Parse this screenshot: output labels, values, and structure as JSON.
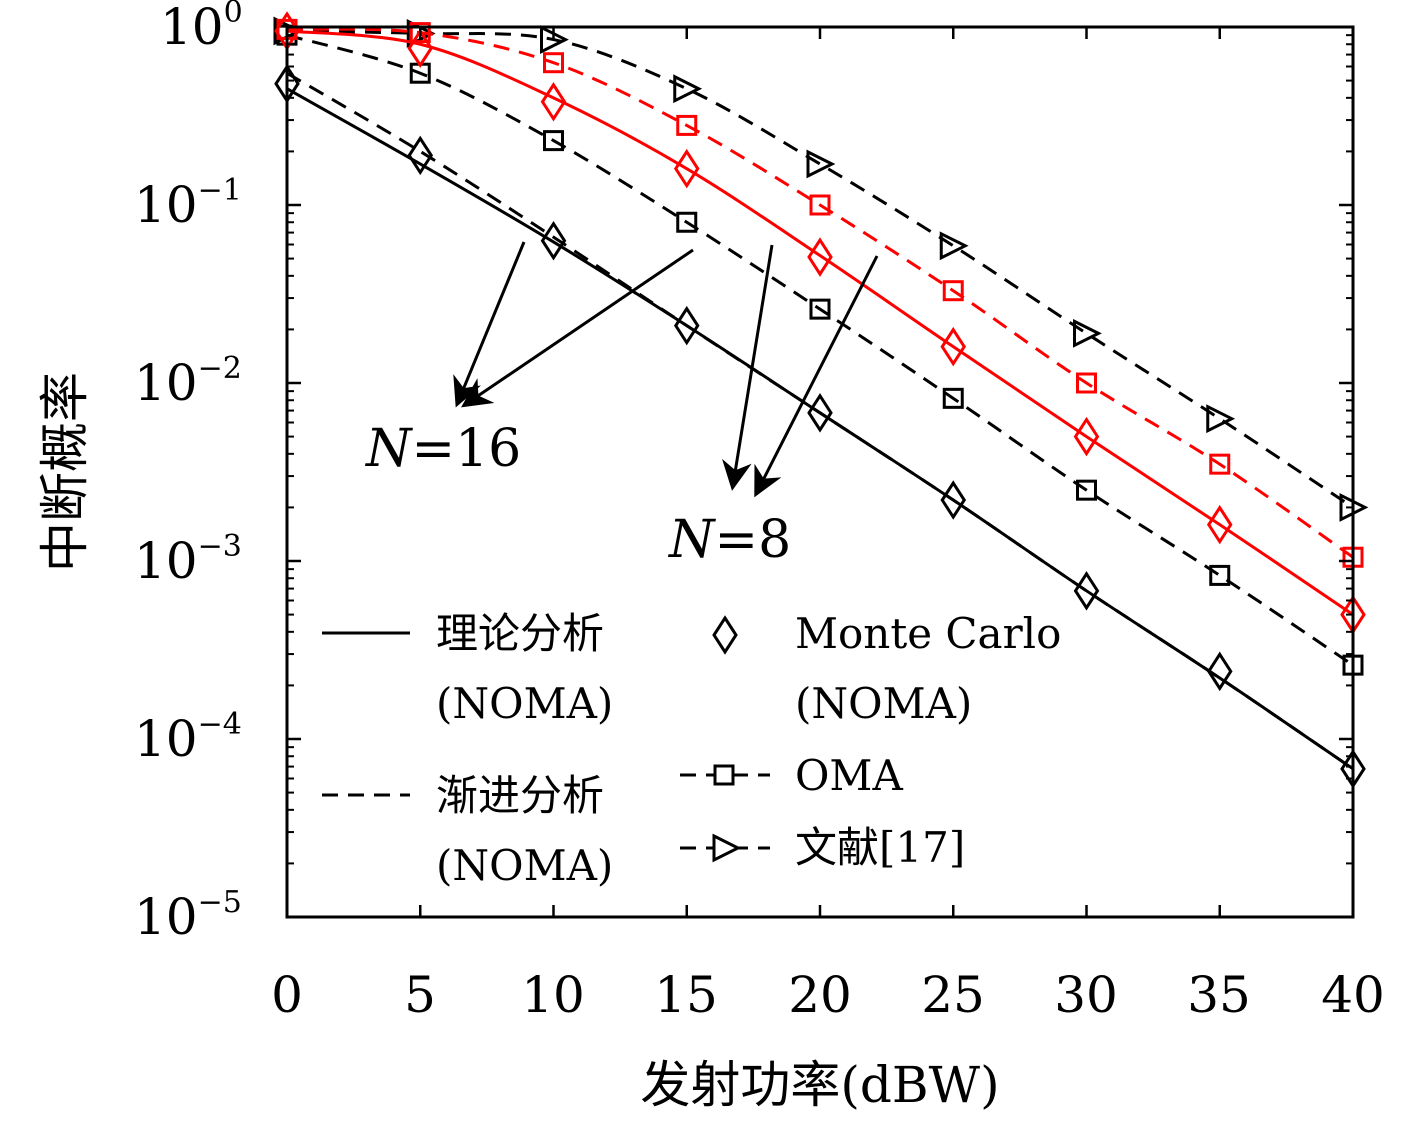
{
  "chart_data": {
    "type": "line",
    "xlabel": "发射功率(dBW)",
    "ylabel": "中断概率",
    "xlim": [
      0,
      40
    ],
    "ylim": [
      1e-05,
      1
    ],
    "yscale": "log",
    "grid": false,
    "x_ticks": [
      "0",
      "5",
      "10",
      "15",
      "20",
      "25",
      "30",
      "35",
      "40"
    ],
    "y_ticks": [
      {
        "mantissa": "10",
        "exponent": "0"
      },
      {
        "mantissa": "10",
        "exponent": "−1"
      },
      {
        "mantissa": "10",
        "exponent": "−2"
      },
      {
        "mantissa": "10",
        "exponent": "−3"
      },
      {
        "mantissa": "10",
        "exponent": "−4"
      },
      {
        "mantissa": "10",
        "exponent": "−5"
      }
    ],
    "x": [
      0,
      5,
      10,
      15,
      20,
      25,
      30,
      35,
      40
    ],
    "series": [
      {
        "group": "N=16",
        "kind": "analysis",
        "color": "#000000",
        "style": "solid",
        "marker": "none",
        "values": [
          0.45,
          0.17,
          0.062,
          0.021,
          0.0068,
          0.0022,
          0.00068,
          0.00022,
          6.8e-05
        ]
      },
      {
        "group": "N=16",
        "kind": "asymptotic",
        "color": "#000000",
        "style": "dashed",
        "marker": "none",
        "values": [
          0.55,
          0.2,
          0.066,
          0.021,
          0.0068,
          0.0022,
          0.00068,
          0.00022,
          6.8e-05
        ]
      },
      {
        "group": "N=16",
        "kind": "monte-carlo",
        "color": "#000000",
        "style": "none",
        "marker": "diamond",
        "values": [
          0.48,
          0.19,
          0.063,
          0.021,
          0.0068,
          0.0022,
          0.00068,
          0.00024,
          6.8e-05
        ]
      },
      {
        "group": "N=16",
        "kind": "oma",
        "color": "#000000",
        "style": "dashed",
        "marker": "square",
        "values": [
          0.9,
          0.55,
          0.23,
          0.08,
          0.026,
          0.0082,
          0.0025,
          0.00083,
          0.00026
        ]
      },
      {
        "group": "N=16",
        "kind": "ref17",
        "color": "#000000",
        "style": "dashed",
        "marker": "triangle-right",
        "values": [
          0.95,
          0.92,
          0.85,
          0.45,
          0.17,
          0.059,
          0.019,
          0.0063,
          0.002
        ]
      },
      {
        "group": "N=8",
        "kind": "analysis",
        "color": "#ff0000",
        "style": "solid",
        "marker": "none",
        "values": [
          0.95,
          0.8,
          0.4,
          0.16,
          0.052,
          0.016,
          0.005,
          0.0016,
          0.0005
        ]
      },
      {
        "group": "N=8",
        "kind": "monte-carlo",
        "color": "#ff0000",
        "style": "none",
        "marker": "diamond",
        "values": [
          0.95,
          0.76,
          0.38,
          0.16,
          0.051,
          0.016,
          0.005,
          0.0016,
          0.0005
        ]
      },
      {
        "group": "N=8",
        "kind": "oma",
        "color": "#ff0000",
        "style": "dashed",
        "marker": "square",
        "values": [
          0.97,
          0.93,
          0.63,
          0.28,
          0.1,
          0.033,
          0.01,
          0.0035,
          0.00105
        ]
      }
    ],
    "annotations": [
      {
        "text_italic": "N",
        "text_rest": "=16"
      },
      {
        "text_italic": "N",
        "text_rest": "=8"
      }
    ],
    "legend": {
      "placement": "lower-left",
      "analysis": {
        "line1": "理论分析",
        "line2": "(NOMA)"
      },
      "asymptotic": {
        "line1": "渐进分析",
        "line2": "(NOMA)"
      },
      "monte_carlo": {
        "line1": "Monte Carlo",
        "line2": "(NOMA)"
      },
      "oma": "OMA",
      "ref17": "文献[17]"
    }
  }
}
